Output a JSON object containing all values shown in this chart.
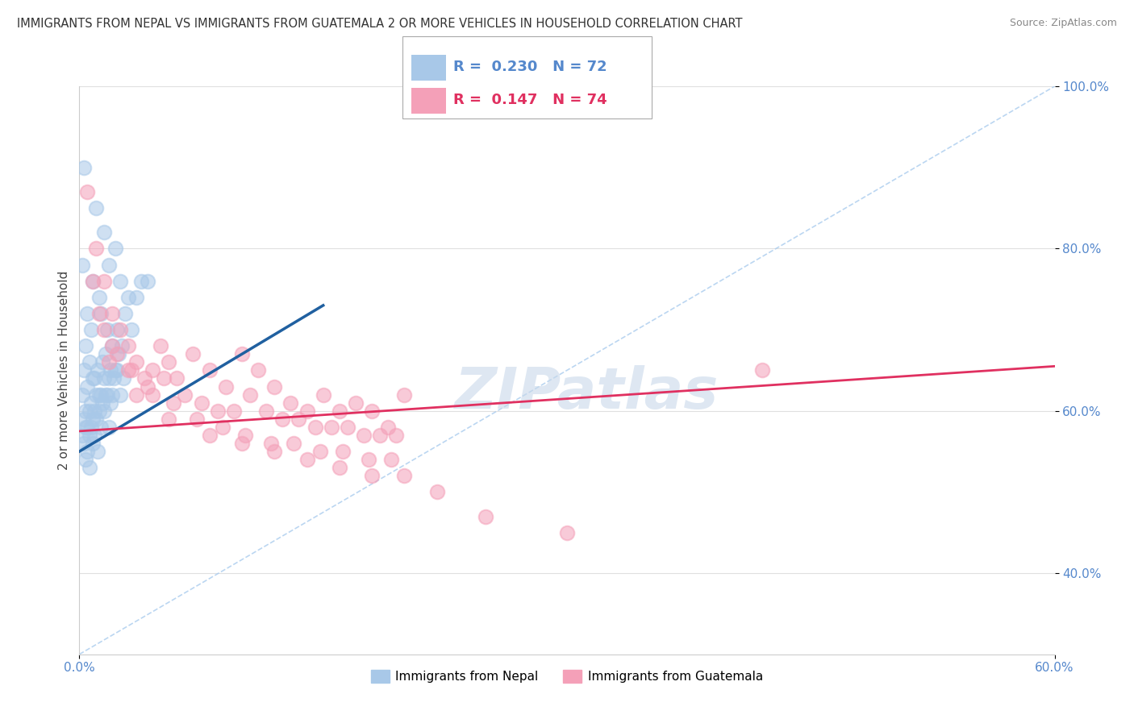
{
  "title": "IMMIGRANTS FROM NEPAL VS IMMIGRANTS FROM GUATEMALA 2 OR MORE VEHICLES IN HOUSEHOLD CORRELATION CHART",
  "source": "Source: ZipAtlas.com",
  "ylabel": "2 or more Vehicles in Household",
  "legend_nepal": "Immigrants from Nepal",
  "legend_guatemala": "Immigrants from Guatemala",
  "nepal_R": "0.230",
  "nepal_N": "72",
  "guatemala_R": "0.147",
  "guatemala_N": "74",
  "nepal_color": "#a8c8e8",
  "nepal_line_color": "#2060a0",
  "guatemala_color": "#f4a0b8",
  "guatemala_line_color": "#e03060",
  "diagonal_color": "#aaccee",
  "watermark_text": "ZIPatlas",
  "nepal_x": [
    0.3,
    1.0,
    1.5,
    0.2,
    0.8,
    1.2,
    0.5,
    0.7,
    1.8,
    2.2,
    0.4,
    0.6,
    1.3,
    1.7,
    2.5,
    0.3,
    0.9,
    1.4,
    2.0,
    3.0,
    0.2,
    0.5,
    0.8,
    1.1,
    1.6,
    2.3,
    0.4,
    0.7,
    1.0,
    1.5,
    2.8,
    0.3,
    0.6,
    1.2,
    1.9,
    2.6,
    0.5,
    0.8,
    1.4,
    2.1,
    3.5,
    0.2,
    0.4,
    0.9,
    1.3,
    1.8,
    2.4,
    0.6,
    1.0,
    1.6,
    2.2,
    3.8,
    0.3,
    0.7,
    1.2,
    1.7,
    2.3,
    0.5,
    0.9,
    1.5,
    2.0,
    3.2,
    0.4,
    0.8,
    1.3,
    1.9,
    2.7,
    0.6,
    1.1,
    1.8,
    2.5,
    4.2
  ],
  "nepal_y": [
    90.0,
    85.0,
    82.0,
    78.0,
    76.0,
    74.0,
    72.0,
    70.0,
    78.0,
    80.0,
    68.0,
    66.0,
    72.0,
    70.0,
    76.0,
    65.0,
    64.0,
    66.0,
    68.0,
    74.0,
    62.0,
    63.0,
    64.0,
    65.0,
    67.0,
    70.0,
    60.0,
    61.0,
    62.0,
    64.0,
    72.0,
    59.0,
    60.0,
    62.0,
    65.0,
    68.0,
    58.0,
    59.0,
    61.0,
    64.0,
    74.0,
    57.0,
    58.0,
    60.0,
    62.0,
    64.0,
    67.0,
    57.0,
    59.0,
    62.0,
    65.0,
    76.0,
    56.0,
    58.0,
    60.0,
    62.0,
    65.0,
    55.0,
    57.0,
    60.0,
    62.0,
    70.0,
    54.0,
    56.0,
    58.0,
    61.0,
    64.0,
    53.0,
    55.0,
    58.0,
    62.0,
    76.0
  ],
  "guatemala_x": [
    0.5,
    1.0,
    1.5,
    2.0,
    2.5,
    3.0,
    3.5,
    4.0,
    4.5,
    5.0,
    5.5,
    6.0,
    7.0,
    8.0,
    9.0,
    10.0,
    11.0,
    12.0,
    13.0,
    14.0,
    15.0,
    16.0,
    17.0,
    18.0,
    19.0,
    20.0,
    0.8,
    1.5,
    2.3,
    3.2,
    4.2,
    5.2,
    6.5,
    7.5,
    8.5,
    9.5,
    10.5,
    11.5,
    12.5,
    13.5,
    14.5,
    15.5,
    16.5,
    17.5,
    18.5,
    19.5,
    1.2,
    2.0,
    3.0,
    4.5,
    5.8,
    7.2,
    8.8,
    10.2,
    11.8,
    13.2,
    14.8,
    16.2,
    17.8,
    19.2,
    1.8,
    3.5,
    5.5,
    8.0,
    10.0,
    12.0,
    14.0,
    16.0,
    18.0,
    20.0,
    22.0,
    25.0,
    30.0,
    42.0
  ],
  "guatemala_y": [
    87.0,
    80.0,
    76.0,
    72.0,
    70.0,
    68.0,
    66.0,
    64.0,
    65.0,
    68.0,
    66.0,
    64.0,
    67.0,
    65.0,
    63.0,
    67.0,
    65.0,
    63.0,
    61.0,
    60.0,
    62.0,
    60.0,
    61.0,
    60.0,
    58.0,
    62.0,
    76.0,
    70.0,
    67.0,
    65.0,
    63.0,
    64.0,
    62.0,
    61.0,
    60.0,
    60.0,
    62.0,
    60.0,
    59.0,
    59.0,
    58.0,
    58.0,
    58.0,
    57.0,
    57.0,
    57.0,
    72.0,
    68.0,
    65.0,
    62.0,
    61.0,
    59.0,
    58.0,
    57.0,
    56.0,
    56.0,
    55.0,
    55.0,
    54.0,
    54.0,
    66.0,
    62.0,
    59.0,
    57.0,
    56.0,
    55.0,
    54.0,
    53.0,
    52.0,
    52.0,
    50.0,
    47.0,
    45.0,
    65.0
  ],
  "xmin": 0.0,
  "xmax": 60.0,
  "ymin": 30.0,
  "ymax": 100.0,
  "nepal_trend_x0": 0.0,
  "nepal_trend_y0": 55.0,
  "nepal_trend_x1": 15.0,
  "nepal_trend_y1": 73.0,
  "guatemala_trend_x0": 0.0,
  "guatemala_trend_y0": 57.5,
  "guatemala_trend_x1": 60.0,
  "guatemala_trend_y1": 65.5,
  "grid_color": "#e0e0e0",
  "background_color": "#ffffff"
}
